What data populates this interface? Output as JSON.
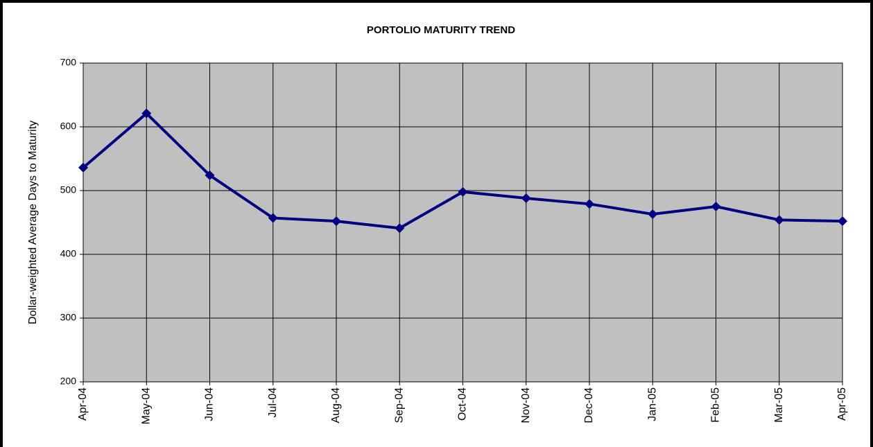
{
  "chart_data": {
    "type": "line",
    "title": "PORTOLIO MATURITY TREND",
    "y_label": "Dollar-weighted Average Days to Maturity",
    "categories": [
      "Apr-04",
      "May-04",
      "Jun-04",
      "Jul-04",
      "Aug-04",
      "Sep-04",
      "Oct-04",
      "Nov-04",
      "Dec-04",
      "Jan-05",
      "Feb-05",
      "Mar-05",
      "Apr-05"
    ],
    "values": [
      536,
      621,
      524,
      457,
      452,
      441,
      498,
      488,
      479,
      463,
      475,
      454,
      452
    ],
    "color": "#000080",
    "plot_background": "#c0c0c0",
    "ylim": [
      200,
      700
    ],
    "yticks": [
      200,
      300,
      400,
      500,
      600,
      700
    ],
    "grid": true
  }
}
